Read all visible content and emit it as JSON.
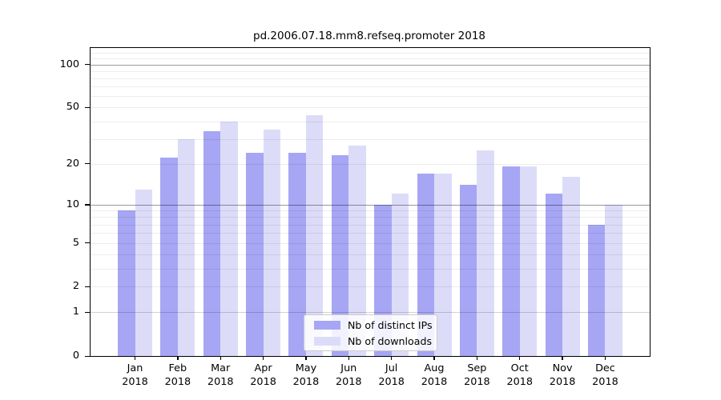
{
  "title": "pd.2006.07.18.mm8.refseq.promoter 2018",
  "chart_data": {
    "type": "bar",
    "title": "pd.2006.07.18.mm8.refseq.promoter 2018",
    "categories": [
      "Jan",
      "Feb",
      "Mar",
      "Apr",
      "May",
      "Jun",
      "Jul",
      "Aug",
      "Sep",
      "Oct",
      "Nov",
      "Dec"
    ],
    "year_label": "2018",
    "series": [
      {
        "name": "Nb of distinct IPs",
        "color": "#a6a6f4",
        "values": [
          9,
          22,
          34,
          24,
          24,
          23,
          10,
          17,
          14,
          19,
          12,
          7
        ]
      },
      {
        "name": "Nb of downloads",
        "color": "#dcdcf9",
        "values": [
          13,
          30,
          40,
          35,
          44,
          27,
          12,
          17,
          25,
          19,
          16,
          10
        ]
      }
    ],
    "xlabel": "",
    "ylabel": "",
    "yscale": "log1p",
    "ylim": [
      0,
      130
    ],
    "yticks": [
      0,
      1,
      2,
      5,
      10,
      20,
      50,
      100
    ],
    "grid": "on",
    "gridlines_major_at": [
      10,
      100
    ],
    "gridlines_mid_at": [
      1
    ],
    "legend_position": "bottom-center"
  }
}
